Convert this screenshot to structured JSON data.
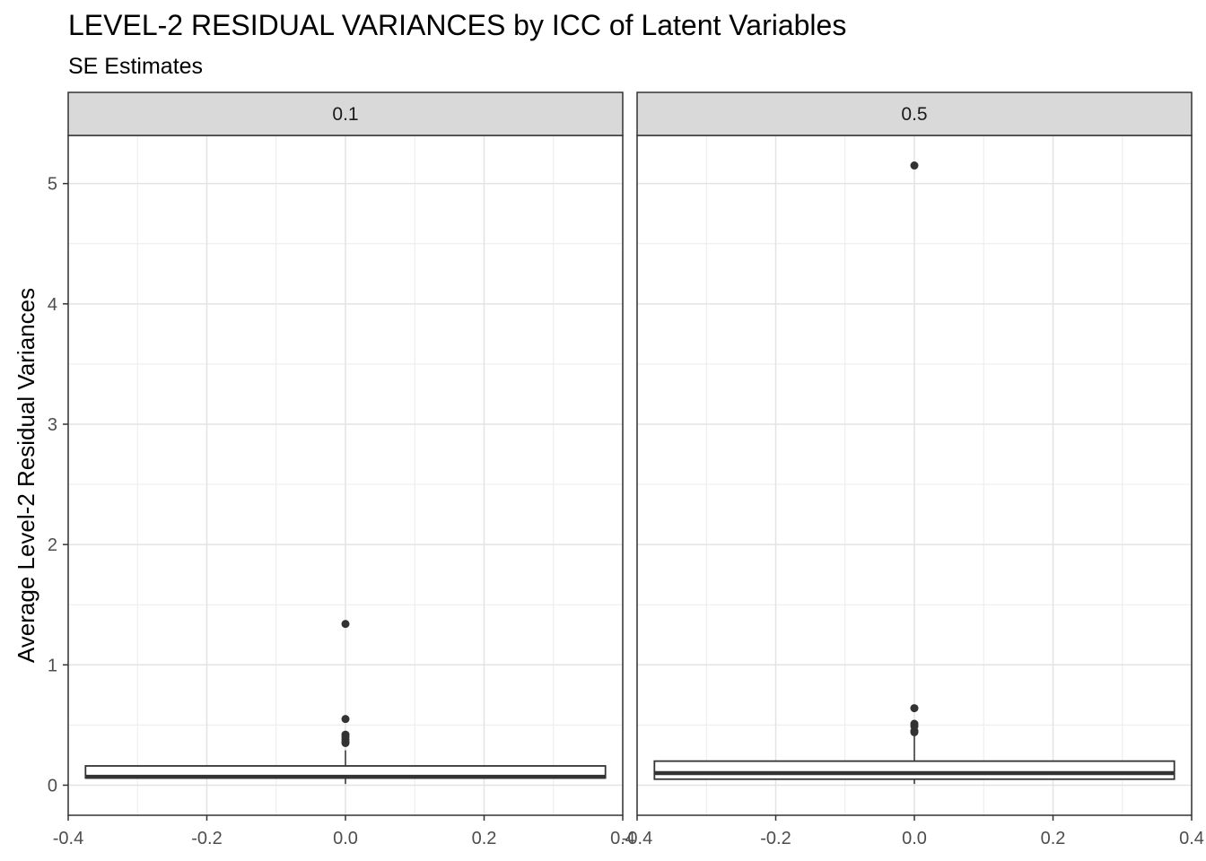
{
  "chart_data": {
    "type": "boxplot",
    "title": "LEVEL-2 RESIDUAL VARIANCES by ICC of Latent Variables",
    "subtitle": "SE Estimates",
    "ylabel": "Average Level-2 Residual Variances",
    "xlabel": "",
    "xlim": [
      -0.4,
      0.4
    ],
    "ylim": [
      -0.25,
      5.4
    ],
    "x_ticks": [
      -0.4,
      -0.2,
      0.0,
      0.2,
      0.4
    ],
    "x_tick_labels": [
      "-0.4",
      "-0.2",
      "0.0",
      "0.2",
      "0.4"
    ],
    "y_ticks": [
      0,
      1,
      2,
      3,
      4,
      5
    ],
    "y_tick_labels": [
      "0",
      "1",
      "2",
      "3",
      "4",
      "5"
    ],
    "grid": true,
    "facets": [
      {
        "label": "0.1",
        "box": {
          "x": 0,
          "width": 0.75,
          "min": 0.01,
          "q1": 0.06,
          "median": 0.07,
          "q3": 0.16,
          "whisker_high": 0.29
        },
        "outliers": [
          1.34,
          0.55,
          0.42,
          0.4,
          0.38,
          0.36,
          0.35
        ]
      },
      {
        "label": "0.5",
        "box": {
          "x": 0,
          "width": 0.75,
          "min": 0.01,
          "q1": 0.05,
          "median": 0.1,
          "q3": 0.2,
          "whisker_high": 0.41
        },
        "outliers": [
          5.15,
          0.64,
          0.51,
          0.49,
          0.45,
          0.44
        ]
      }
    ]
  }
}
